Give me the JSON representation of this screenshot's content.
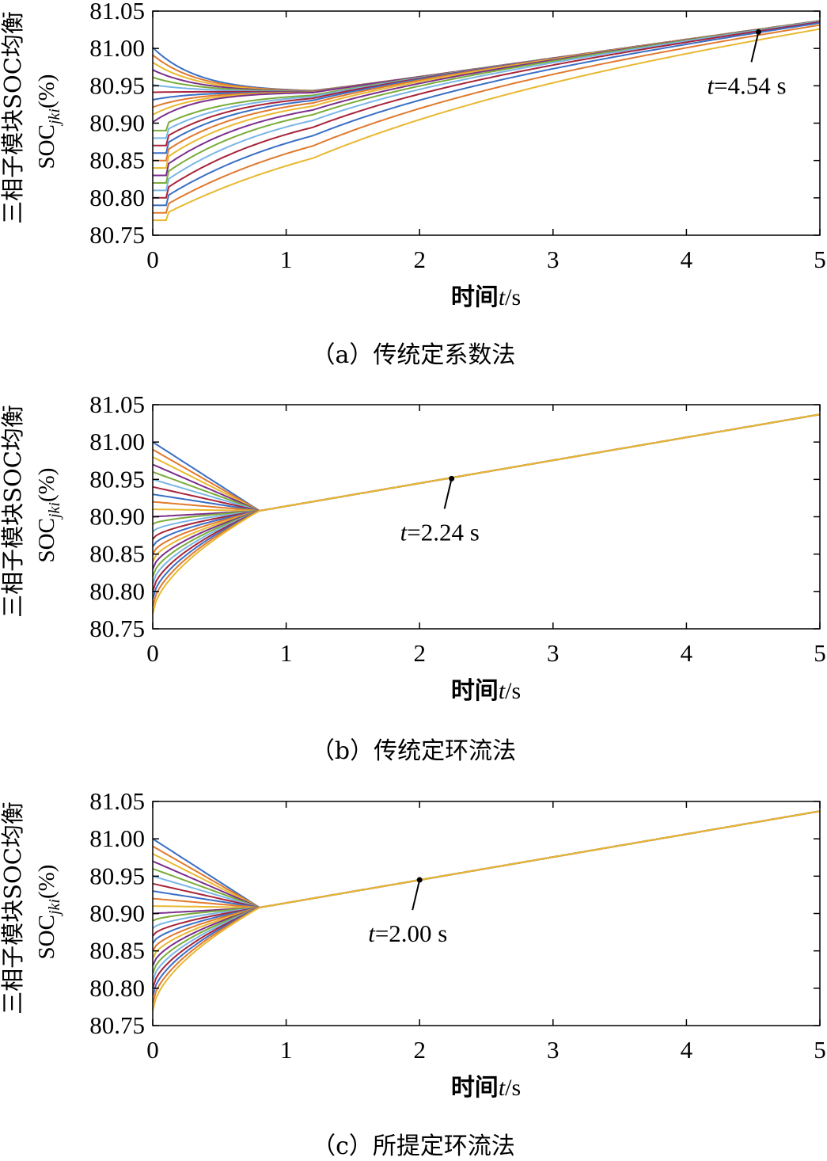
{
  "chart_data": [
    {
      "type": "line",
      "caption": "（a）传统定系数法",
      "ylabel_line1": "三相子模块SOC均衡",
      "ylabel_line2_main": "SOC",
      "ylabel_line2_sub": "jki",
      "ylabel_line2_unit": "(%)",
      "xlabel_main": "时间",
      "xlabel_var": "t",
      "xlabel_unit": "/s",
      "xlim": [
        0,
        5
      ],
      "ylim": [
        80.75,
        81.05
      ],
      "xticks": [
        "0",
        "1",
        "2",
        "3",
        "4",
        "5"
      ],
      "yticks": [
        "80.75",
        "80.80",
        "80.85",
        "80.90",
        "80.95",
        "81.00",
        "81.05"
      ],
      "converge_time": 4.54,
      "final_value": 81.037,
      "annotation": {
        "var": "t",
        "text": "=4.54 s",
        "x": 4.54,
        "y": 81.022
      },
      "initial_soc": [
        81.0,
        80.99,
        80.98,
        80.97,
        80.96,
        80.95,
        80.94,
        80.93,
        80.92,
        80.91,
        80.9,
        80.89,
        80.88,
        80.87,
        80.86,
        80.85,
        80.84,
        80.83,
        80.82,
        80.81,
        80.8,
        80.79,
        80.78,
        80.77
      ],
      "series_colors": [
        "#3a6fc4",
        "#e07a2e",
        "#e8b830",
        "#7b2f8c",
        "#7aac3a",
        "#7ab6e6",
        "#a8243a"
      ]
    },
    {
      "type": "line",
      "caption": "（b）传统定环流法",
      "ylabel_line1": "三相子模块SOC均衡",
      "ylabel_line2_main": "SOC",
      "ylabel_line2_sub": "jki",
      "ylabel_line2_unit": "(%)",
      "xlabel_main": "时间",
      "xlabel_var": "t",
      "xlabel_unit": "/s",
      "xlim": [
        0,
        5
      ],
      "ylim": [
        80.75,
        81.05
      ],
      "xticks": [
        "0",
        "1",
        "2",
        "3",
        "4",
        "5"
      ],
      "yticks": [
        "80.75",
        "80.80",
        "80.85",
        "80.90",
        "80.95",
        "81.00",
        "81.05"
      ],
      "converge_time": 2.24,
      "final_value": 81.037,
      "annotation": {
        "var": "t",
        "text": "=2.24 s",
        "x": 2.24,
        "y": 80.951
      },
      "initial_soc": [
        81.0,
        80.99,
        80.98,
        80.97,
        80.96,
        80.95,
        80.94,
        80.93,
        80.92,
        80.91,
        80.9,
        80.89,
        80.88,
        80.87,
        80.86,
        80.85,
        80.84,
        80.83,
        80.82,
        80.81,
        80.8,
        80.79,
        80.78,
        80.77
      ],
      "series_colors": [
        "#3a6fc4",
        "#e07a2e",
        "#e8b830",
        "#7b2f8c",
        "#7aac3a",
        "#7ab6e6",
        "#a8243a"
      ]
    },
    {
      "type": "line",
      "caption": "（c）所提定环流法",
      "ylabel_line1": "三相子模块SOC均衡",
      "ylabel_line2_main": "SOC",
      "ylabel_line2_sub": "jki",
      "ylabel_line2_unit": "(%)",
      "xlabel_main": "时间",
      "xlabel_var": "t",
      "xlabel_unit": "/s",
      "xlim": [
        0,
        5
      ],
      "ylim": [
        80.75,
        81.05
      ],
      "xticks": [
        "0",
        "1",
        "2",
        "3",
        "4",
        "5"
      ],
      "yticks": [
        "80.75",
        "80.80",
        "80.85",
        "80.90",
        "80.95",
        "81.00",
        "81.05"
      ],
      "converge_time": 2.0,
      "final_value": 81.037,
      "annotation": {
        "var": "t",
        "text": "=2.00 s",
        "x": 2.0,
        "y": 80.945
      },
      "initial_soc": [
        81.0,
        80.99,
        80.98,
        80.97,
        80.96,
        80.95,
        80.94,
        80.93,
        80.92,
        80.91,
        80.9,
        80.89,
        80.88,
        80.87,
        80.86,
        80.85,
        80.84,
        80.83,
        80.82,
        80.81,
        80.8,
        80.79,
        80.78,
        80.77
      ],
      "series_colors": [
        "#3a6fc4",
        "#e07a2e",
        "#e8b830",
        "#7b2f8c",
        "#7aac3a",
        "#7ab6e6",
        "#a8243a"
      ]
    }
  ]
}
